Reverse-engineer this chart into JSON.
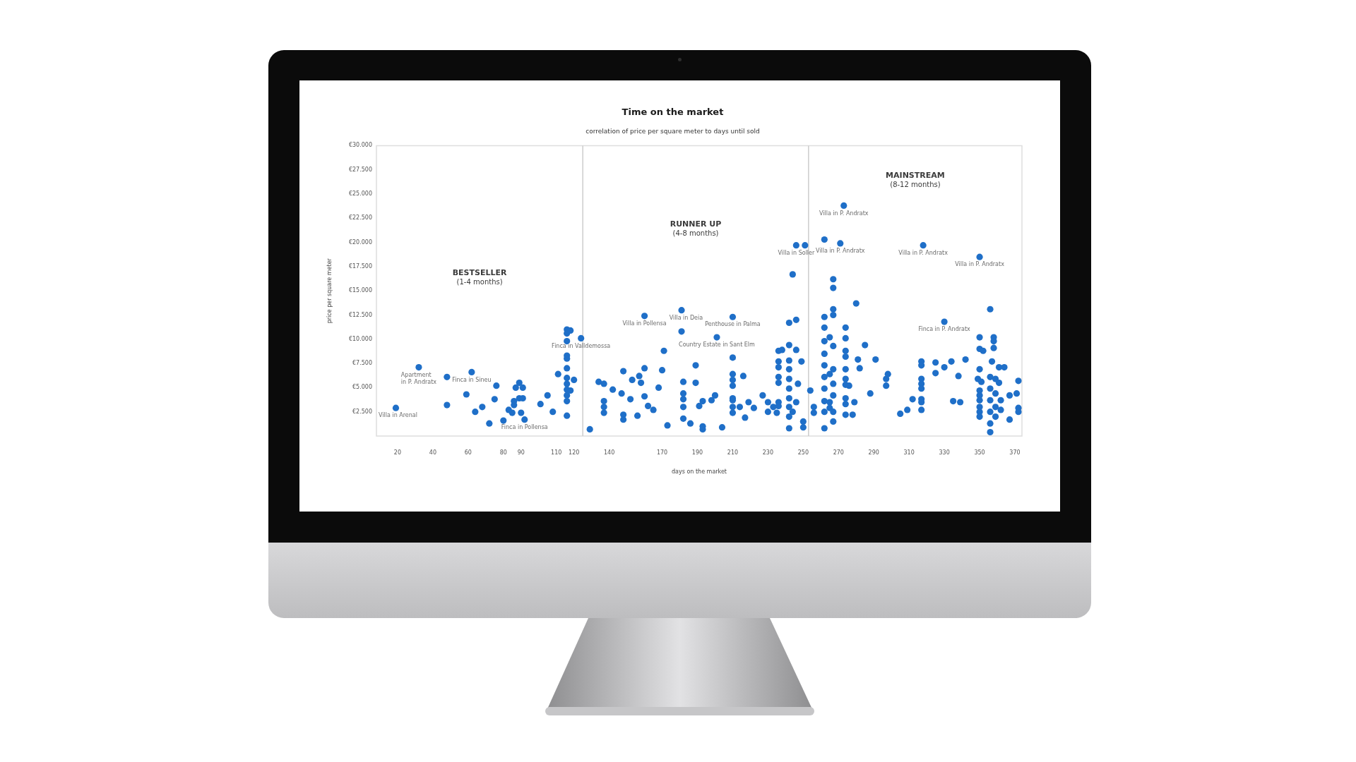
{
  "chart_data": {
    "type": "scatter",
    "title": "Time on the market",
    "subtitle": "correlation of price per square meter to days until sold",
    "xlabel": "days on the market",
    "ylabel": "price per square meter",
    "color": "#1f6fc8",
    "marker": "circle",
    "xlim": [
      8,
      374
    ],
    "xticks": [
      20,
      40,
      60,
      80,
      90,
      110,
      120,
      140,
      170,
      190,
      210,
      230,
      250,
      270,
      290,
      310,
      330,
      350,
      370
    ],
    "ylim": [
      0,
      30000
    ],
    "yticks": [
      {
        "value": 2500,
        "label": "€2.500"
      },
      {
        "value": 5000,
        "label": "€5.000"
      },
      {
        "value": 7500,
        "label": "€7.500"
      },
      {
        "value": 10000,
        "label": "€10.000"
      },
      {
        "value": 12500,
        "label": "€12.500"
      },
      {
        "value": 15000,
        "label": "€15.000"
      },
      {
        "value": 17500,
        "label": "€17.500"
      },
      {
        "value": 20000,
        "label": "€20.000"
      },
      {
        "value": 22500,
        "label": "€22.500"
      },
      {
        "value": 25000,
        "label": "€25.000"
      },
      {
        "value": 27500,
        "label": "€27.500"
      },
      {
        "value": 30000,
        "label": "€30.000"
      }
    ],
    "ref_lines": [
      {
        "axis": "x",
        "value": 125,
        "color": "#cccccc"
      },
      {
        "axis": "x",
        "value": 253,
        "color": "#cccccc"
      }
    ],
    "x": [
      19,
      32,
      48,
      48,
      59,
      62,
      64,
      68,
      72,
      75,
      76,
      80,
      83,
      85,
      86,
      86,
      87,
      89,
      89,
      90,
      91,
      91,
      92,
      101,
      105,
      108,
      111,
      116,
      116,
      116,
      116,
      116,
      116,
      116,
      116,
      116,
      116,
      116,
      116,
      118,
      118,
      120,
      124,
      129,
      134,
      137,
      137,
      137,
      137,
      142,
      147,
      148,
      148,
      148,
      152,
      153,
      156,
      157,
      158,
      160,
      160,
      160,
      162,
      165,
      168,
      170,
      171,
      173,
      181,
      181,
      182,
      182,
      182,
      182,
      182,
      186,
      189,
      189,
      191,
      193,
      193,
      193,
      198,
      200,
      201,
      204,
      210,
      210,
      210,
      210,
      210,
      210,
      210,
      210,
      210,
      214,
      216,
      217,
      219,
      222,
      227,
      230,
      230,
      233,
      235,
      236,
      236,
      236,
      236,
      236,
      236,
      236,
      238,
      242,
      242,
      242,
      242,
      242,
      242,
      242,
      242,
      242,
      242,
      244,
      244,
      246,
      246,
      246,
      246,
      247,
      249,
      250,
      250,
      251,
      254,
      256,
      256,
      262,
      262,
      262,
      262,
      262,
      262,
      262,
      262,
      262,
      262,
      262,
      265,
      265,
      265,
      265,
      267,
      267,
      267,
      267,
      267,
      267,
      267,
      267,
      267,
      267,
      271,
      273,
      274,
      274,
      274,
      274,
      274,
      274,
      274,
      274,
      274,
      274,
      276,
      278,
      279,
      280,
      281,
      282,
      285,
      288,
      291,
      297,
      297,
      298,
      305,
      309,
      312,
      317,
      317,
      317,
      317,
      317,
      317,
      317,
      317,
      318,
      325,
      325,
      330,
      330,
      334,
      335,
      338,
      339,
      342,
      349,
      350,
      350,
      350,
      350,
      350,
      350,
      350,
      350,
      350,
      350,
      351,
      352,
      356,
      356,
      356,
      356,
      356,
      356,
      356,
      357,
      358,
      358,
      358,
      359,
      359,
      359,
      359,
      361,
      361,
      362,
      362,
      364,
      367,
      367,
      371,
      372,
      372,
      372
    ],
    "values": [
      2900,
      7100,
      6100,
      3200,
      4300,
      6600,
      2500,
      3000,
      1300,
      3800,
      5200,
      1600,
      2700,
      2400,
      3200,
      3600,
      5000,
      5500,
      3900,
      2400,
      5000,
      3900,
      1700,
      3300,
      4200,
      2500,
      6400,
      11000,
      10600,
      9800,
      8300,
      8000,
      7000,
      6000,
      5400,
      4800,
      4200,
      3600,
      2100,
      10900,
      4700,
      5800,
      10100,
      700,
      5600,
      5400,
      3600,
      3000,
      2400,
      4800,
      4400,
      6700,
      2200,
      1700,
      3800,
      5800,
      2100,
      6200,
      5500,
      12400,
      7000,
      4100,
      3100,
      2700,
      5000,
      6800,
      8800,
      1100,
      13000,
      10800,
      5600,
      4400,
      3800,
      3000,
      1800,
      1300,
      7300,
      5500,
      3100,
      3600,
      1000,
      700,
      3700,
      4200,
      10200,
      900,
      12300,
      8100,
      6400,
      5800,
      5200,
      3900,
      3700,
      3000,
      2400,
      3000,
      6200,
      1900,
      3500,
      2900,
      4200,
      3500,
      2500,
      3000,
      2400,
      8800,
      7700,
      7100,
      6100,
      5500,
      3500,
      3100,
      8900,
      11700,
      9400,
      7800,
      6900,
      5900,
      4900,
      3900,
      3000,
      2000,
      800,
      16700,
      2500,
      19700,
      12000,
      8900,
      3500,
      5400,
      7700,
      1500,
      900,
      19700,
      4700,
      3000,
      2400,
      20300,
      12300,
      11200,
      9800,
      8500,
      7300,
      6100,
      4900,
      3600,
      2500,
      800,
      10200,
      6400,
      3500,
      2900,
      16200,
      15300,
      13100,
      12500,
      9300,
      6900,
      5400,
      4200,
      2500,
      1500,
      19900,
      23800,
      11200,
      10100,
      8800,
      8200,
      6900,
      5900,
      5300,
      3900,
      3300,
      2200,
      5200,
      2200,
      3500,
      13700,
      7900,
      7000,
      9400,
      4400,
      7900,
      5900,
      5200,
      6400,
      2300,
      2700,
      3800,
      7700,
      7300,
      5900,
      5400,
      4900,
      3800,
      3500,
      2700,
      19700,
      7600,
      6500,
      11800,
      7100,
      7700,
      3600,
      6200,
      3500,
      7900,
      5900,
      18500,
      10200,
      9000,
      6900,
      4700,
      4200,
      3700,
      3000,
      2500,
      2000,
      5600,
      8800,
      13100,
      6100,
      4900,
      3700,
      2500,
      1300,
      400,
      7700,
      10200,
      9800,
      9100,
      5900,
      4400,
      3000,
      2000,
      7100,
      5500,
      3700,
      2700,
      7100,
      4200,
      1700,
      4400,
      5700,
      2900,
      2500
    ],
    "annotations": [
      "BESTSELLER\n(1-4 months)",
      "RUNNER UP\n(4-8 months)",
      "MAINSTREAM\n(8-12 months)",
      {
        "text": "Villa in Arenal",
        "x": 19,
        "y": 2900
      },
      {
        "text": "Apartment\nin P. Andratx",
        "x": 32,
        "y": 7100
      },
      {
        "text": "Finca in Sineu",
        "x": 62,
        "y": 6600
      },
      {
        "text": "Finca in Pollensa",
        "x": 92,
        "y": 1700
      },
      {
        "text": "Finca in Valldemossa",
        "x": 124,
        "y": 10100
      },
      {
        "text": "Villa in Pollensa",
        "x": 160,
        "y": 12400
      },
      {
        "text": "Villa in Deia",
        "x": 181,
        "y": 13000
      },
      {
        "text": "Penthouse in Palma",
        "x": 210,
        "y": 12300
      },
      {
        "text": "Country Estate in Sant Elm",
        "x": 201,
        "y": 10200
      },
      {
        "text": "Villa in Soller",
        "x": 246,
        "y": 19700
      },
      {
        "text": "Villa in P. Andratx",
        "x": 271,
        "y": 19900
      },
      {
        "text": "Villa in P. Andratx",
        "x": 273,
        "y": 23800
      },
      {
        "text": "Villa in P. Andratx",
        "x": 318,
        "y": 19700
      },
      {
        "text": "Villa in P. Andratx",
        "x": 350,
        "y": 18500
      },
      {
        "text": "Finca in P. Andratx",
        "x": 330,
        "y": 11800
      }
    ]
  }
}
